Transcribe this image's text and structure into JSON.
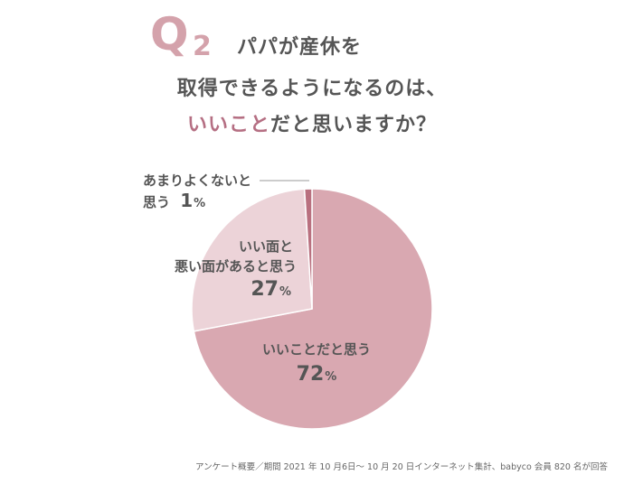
{
  "question": {
    "badge_letter": "Q",
    "badge_number": "2",
    "line1": "パパが産休を",
    "line2": "取得できるようになるのは、",
    "line3_highlight": "いいこと",
    "line3_rest": "だと思いますか？"
  },
  "colors": {
    "good": "#d9a8b1",
    "mixed": "#ecd3d8",
    "bad": "#b9707f",
    "highlight_text": "#b56f83",
    "badge": "#d4a2ab"
  },
  "chart_data": {
    "type": "pie",
    "slices": [
      {
        "line1": "いいことだと思う",
        "value": 72,
        "unit": "%"
      },
      {
        "line1": "いい面と",
        "line2": "悪い面があると思う",
        "value": 27,
        "unit": "%"
      },
      {
        "line1": "あまりよくないと",
        "line2": "思う",
        "value": 1,
        "unit": "%"
      }
    ]
  },
  "footer": "アンケート概要／期間 2021 年 10 月6日～ 10 月 20 日インターネット集計、babyco 会員 820 名が回答"
}
